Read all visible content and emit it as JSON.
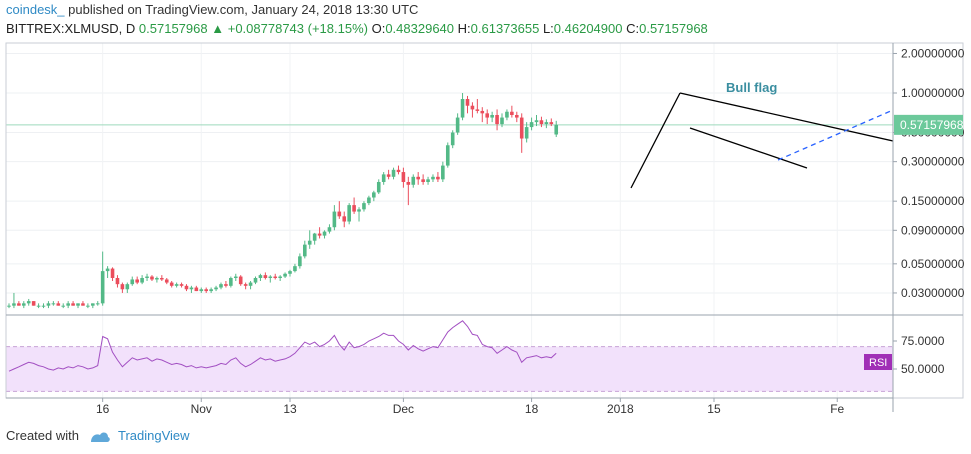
{
  "header": {
    "publisher": "coindesk_",
    "published_text": "published on TradingView.com, January 24, 2018 13:30 UTC",
    "symbol": "BITTREX:XLMUSD, D",
    "last": "0.57157968",
    "change": "+0.08778743 (+18.15%)",
    "o_label": "O:",
    "o_value": "0.48329640",
    "h_label": "H:",
    "h_value": "0.61373655",
    "l_label": "L:",
    "l_value": "0.46204900",
    "c_label": "C:",
    "c_value": "0.57157968"
  },
  "footer": {
    "created_with": "Created with",
    "brand": "TradingView"
  },
  "colors": {
    "up": "#53b987",
    "down": "#eb4d5c",
    "rsi_line": "#a24fc2",
    "rsi_band": "#f2e1fb",
    "price_tag": "#6cc99b",
    "rsi_tag": "#a02fb6",
    "trend_dash": "#2962ff"
  },
  "chart_data": {
    "type": "candlestick",
    "scale": "log",
    "y_ticks": [
      "2.00000000",
      "1.00000000",
      "0.50000000",
      "0.30000000",
      "0.15000000",
      "0.09000000",
      "0.05000000",
      "0.03000000"
    ],
    "y_tick_values": [
      2.0,
      1.0,
      0.5,
      0.3,
      0.15,
      0.09,
      0.05,
      0.03
    ],
    "x_ticks": [
      "16",
      "Nov",
      "13",
      "Dec",
      "18",
      "2018",
      "15",
      "Fe"
    ],
    "x_tick_index": [
      19,
      39,
      57,
      80,
      106,
      124,
      143,
      168
    ],
    "annotation": "Bull flag",
    "price_tag": "0.57157968",
    "candles": [
      [
        0.024,
        0.025,
        0.023,
        0.024
      ],
      [
        0.024,
        0.03,
        0.023,
        0.025
      ],
      [
        0.025,
        0.026,
        0.024,
        0.024
      ],
      [
        0.024,
        0.026,
        0.023,
        0.025
      ],
      [
        0.025,
        0.027,
        0.024,
        0.026
      ],
      [
        0.026,
        0.026,
        0.024,
        0.024
      ],
      [
        0.024,
        0.025,
        0.023,
        0.024
      ],
      [
        0.024,
        0.025,
        0.023,
        0.024
      ],
      [
        0.024,
        0.026,
        0.023,
        0.025
      ],
      [
        0.025,
        0.026,
        0.024,
        0.025
      ],
      [
        0.025,
        0.026,
        0.024,
        0.024
      ],
      [
        0.024,
        0.025,
        0.023,
        0.024
      ],
      [
        0.024,
        0.026,
        0.023,
        0.025
      ],
      [
        0.025,
        0.026,
        0.024,
        0.024
      ],
      [
        0.024,
        0.025,
        0.023,
        0.025
      ],
      [
        0.025,
        0.026,
        0.024,
        0.024
      ],
      [
        0.024,
        0.025,
        0.023,
        0.024
      ],
      [
        0.024,
        0.025,
        0.023,
        0.025
      ],
      [
        0.025,
        0.026,
        0.024,
        0.025
      ],
      [
        0.025,
        0.062,
        0.024,
        0.044
      ],
      [
        0.044,
        0.048,
        0.039,
        0.046
      ],
      [
        0.046,
        0.047,
        0.037,
        0.039
      ],
      [
        0.039,
        0.041,
        0.033,
        0.035
      ],
      [
        0.035,
        0.036,
        0.03,
        0.032
      ],
      [
        0.032,
        0.036,
        0.03,
        0.035
      ],
      [
        0.035,
        0.04,
        0.034,
        0.038
      ],
      [
        0.038,
        0.04,
        0.035,
        0.036
      ],
      [
        0.036,
        0.041,
        0.035,
        0.039
      ],
      [
        0.039,
        0.042,
        0.037,
        0.04
      ],
      [
        0.04,
        0.041,
        0.037,
        0.038
      ],
      [
        0.038,
        0.04,
        0.036,
        0.039
      ],
      [
        0.039,
        0.041,
        0.037,
        0.038
      ],
      [
        0.038,
        0.039,
        0.035,
        0.036
      ],
      [
        0.036,
        0.037,
        0.033,
        0.034
      ],
      [
        0.034,
        0.036,
        0.033,
        0.035
      ],
      [
        0.035,
        0.036,
        0.033,
        0.034
      ],
      [
        0.034,
        0.035,
        0.031,
        0.032
      ],
      [
        0.032,
        0.034,
        0.03,
        0.033
      ],
      [
        0.033,
        0.034,
        0.031,
        0.031
      ],
      [
        0.031,
        0.033,
        0.03,
        0.032
      ],
      [
        0.032,
        0.033,
        0.03,
        0.031
      ],
      [
        0.031,
        0.033,
        0.03,
        0.032
      ],
      [
        0.032,
        0.034,
        0.031,
        0.033
      ],
      [
        0.033,
        0.036,
        0.032,
        0.035
      ],
      [
        0.035,
        0.037,
        0.033,
        0.034
      ],
      [
        0.034,
        0.04,
        0.033,
        0.039
      ],
      [
        0.039,
        0.042,
        0.037,
        0.04
      ],
      [
        0.04,
        0.041,
        0.034,
        0.035
      ],
      [
        0.035,
        0.036,
        0.032,
        0.034
      ],
      [
        0.034,
        0.037,
        0.032,
        0.036
      ],
      [
        0.036,
        0.04,
        0.035,
        0.039
      ],
      [
        0.039,
        0.042,
        0.037,
        0.041
      ],
      [
        0.041,
        0.043,
        0.038,
        0.039
      ],
      [
        0.039,
        0.041,
        0.036,
        0.04
      ],
      [
        0.04,
        0.042,
        0.038,
        0.039
      ],
      [
        0.039,
        0.041,
        0.037,
        0.04
      ],
      [
        0.04,
        0.043,
        0.039,
        0.042
      ],
      [
        0.042,
        0.045,
        0.04,
        0.044
      ],
      [
        0.044,
        0.05,
        0.043,
        0.048
      ],
      [
        0.048,
        0.06,
        0.046,
        0.057
      ],
      [
        0.057,
        0.075,
        0.055,
        0.07
      ],
      [
        0.07,
        0.09,
        0.065,
        0.075
      ],
      [
        0.075,
        0.086,
        0.07,
        0.085
      ],
      [
        0.085,
        0.095,
        0.078,
        0.082
      ],
      [
        0.082,
        0.09,
        0.078,
        0.088
      ],
      [
        0.088,
        0.1,
        0.085,
        0.095
      ],
      [
        0.095,
        0.14,
        0.09,
        0.125
      ],
      [
        0.125,
        0.15,
        0.11,
        0.115
      ],
      [
        0.115,
        0.125,
        0.095,
        0.105
      ],
      [
        0.105,
        0.145,
        0.1,
        0.14
      ],
      [
        0.14,
        0.16,
        0.12,
        0.125
      ],
      [
        0.125,
        0.135,
        0.105,
        0.13
      ],
      [
        0.13,
        0.15,
        0.125,
        0.145
      ],
      [
        0.145,
        0.165,
        0.14,
        0.16
      ],
      [
        0.16,
        0.18,
        0.15,
        0.175
      ],
      [
        0.175,
        0.22,
        0.17,
        0.21
      ],
      [
        0.21,
        0.25,
        0.2,
        0.24
      ],
      [
        0.24,
        0.26,
        0.22,
        0.23
      ],
      [
        0.23,
        0.27,
        0.22,
        0.26
      ],
      [
        0.26,
        0.28,
        0.24,
        0.25
      ],
      [
        0.25,
        0.27,
        0.19,
        0.21
      ],
      [
        0.21,
        0.23,
        0.14,
        0.2
      ],
      [
        0.2,
        0.24,
        0.19,
        0.23
      ],
      [
        0.23,
        0.25,
        0.2,
        0.22
      ],
      [
        0.22,
        0.24,
        0.2,
        0.21
      ],
      [
        0.21,
        0.23,
        0.2,
        0.22
      ],
      [
        0.22,
        0.24,
        0.21,
        0.23
      ],
      [
        0.23,
        0.25,
        0.21,
        0.22
      ],
      [
        0.22,
        0.3,
        0.21,
        0.28
      ],
      [
        0.28,
        0.42,
        0.27,
        0.4
      ],
      [
        0.4,
        0.52,
        0.38,
        0.5
      ],
      [
        0.5,
        0.7,
        0.48,
        0.65
      ],
      [
        0.65,
        1.0,
        0.62,
        0.9
      ],
      [
        0.9,
        0.95,
        0.7,
        0.8
      ],
      [
        0.8,
        0.85,
        0.65,
        0.75
      ],
      [
        0.75,
        0.9,
        0.7,
        0.73
      ],
      [
        0.73,
        0.78,
        0.6,
        0.7
      ],
      [
        0.7,
        0.75,
        0.58,
        0.65
      ],
      [
        0.65,
        0.72,
        0.6,
        0.68
      ],
      [
        0.68,
        0.75,
        0.52,
        0.58
      ],
      [
        0.58,
        0.7,
        0.55,
        0.65
      ],
      [
        0.65,
        0.75,
        0.62,
        0.72
      ],
      [
        0.72,
        0.8,
        0.65,
        0.68
      ],
      [
        0.68,
        0.72,
        0.6,
        0.65
      ],
      [
        0.65,
        0.7,
        0.35,
        0.45
      ],
      [
        0.45,
        0.6,
        0.42,
        0.55
      ],
      [
        0.55,
        0.65,
        0.52,
        0.6
      ],
      [
        0.6,
        0.68,
        0.56,
        0.62
      ],
      [
        0.62,
        0.66,
        0.55,
        0.58
      ],
      [
        0.58,
        0.63,
        0.54,
        0.6
      ],
      [
        0.6,
        0.64,
        0.56,
        0.58
      ],
      [
        0.483,
        0.614,
        0.462,
        0.572
      ]
    ],
    "rsi": {
      "levels": [
        "75.0000",
        "50.0000"
      ],
      "level_values": [
        75,
        50
      ],
      "last_label": "RSI",
      "values": [
        48,
        50,
        52,
        54,
        56,
        55,
        53,
        52,
        50,
        49,
        51,
        50,
        52,
        51,
        53,
        52,
        50,
        51,
        53,
        79,
        77,
        65,
        58,
        52,
        56,
        60,
        58,
        59,
        60,
        57,
        59,
        58,
        56,
        54,
        55,
        54,
        52,
        53,
        51,
        52,
        51,
        52,
        53,
        55,
        54,
        58,
        60,
        55,
        52,
        54,
        57,
        60,
        58,
        59,
        57,
        58,
        59,
        61,
        64,
        69,
        74,
        72,
        74,
        70,
        72,
        75,
        80,
        72,
        67,
        74,
        69,
        70,
        72,
        75,
        77,
        79,
        82,
        80,
        80,
        75,
        72,
        67,
        71,
        68,
        66,
        68,
        70,
        69,
        76,
        83,
        87,
        90,
        93,
        88,
        81,
        80,
        72,
        70,
        69,
        64,
        67,
        70,
        67,
        65,
        56,
        60,
        61,
        62,
        60,
        61,
        60,
        64
      ]
    }
  }
}
